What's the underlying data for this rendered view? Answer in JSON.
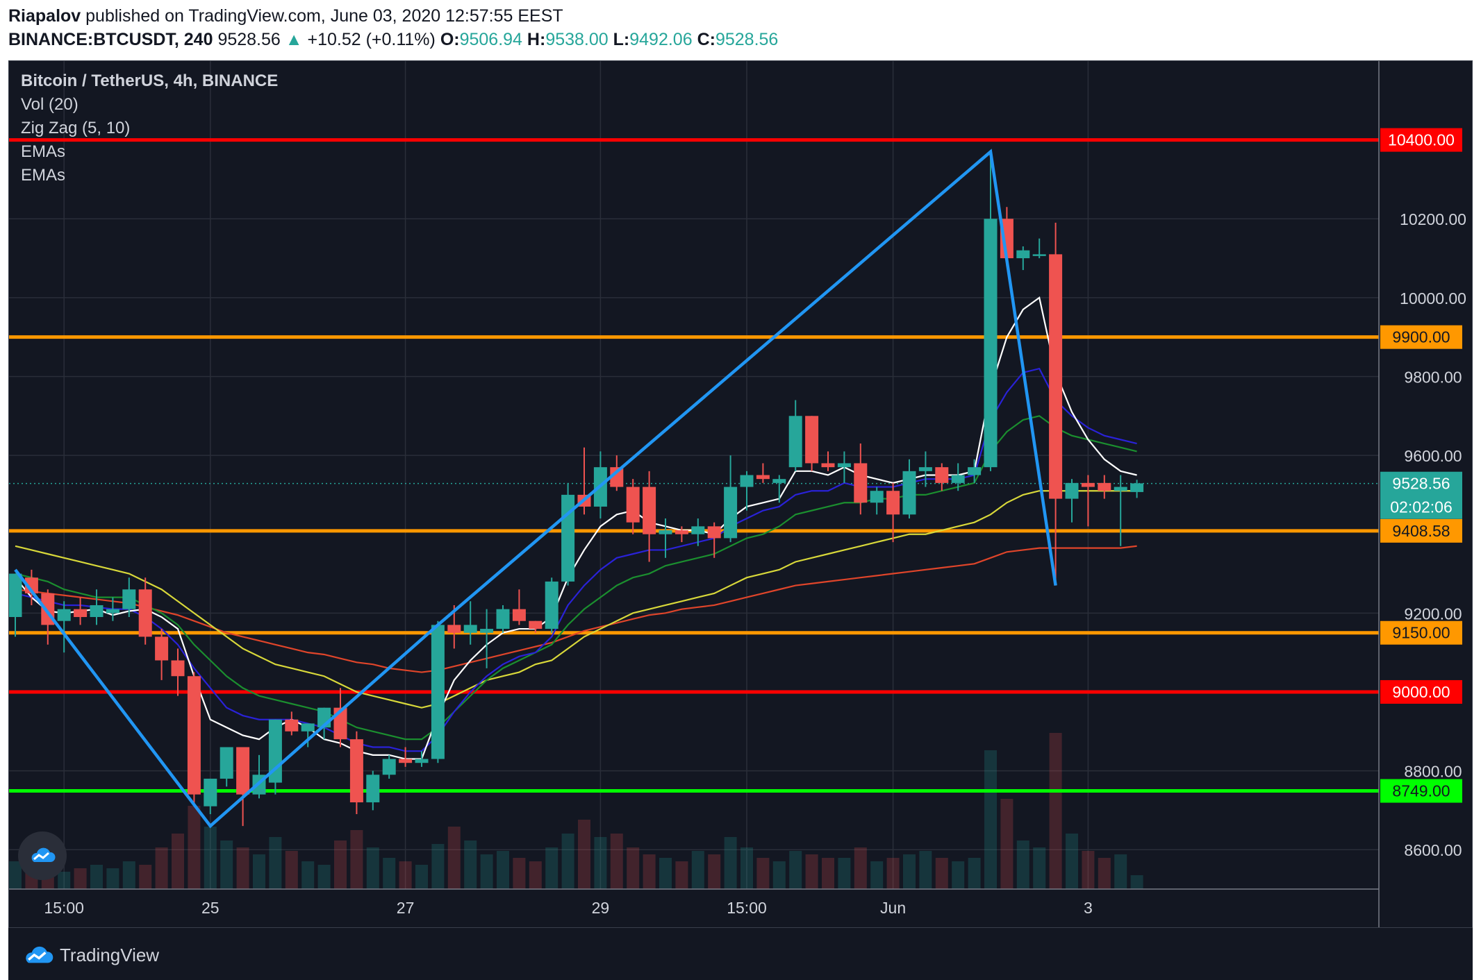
{
  "header": {
    "author": "Riapalov",
    "published": " published on TradingView.com, June 03, 2020 12:57:55 EEST",
    "symbol": "BINANCE:BTCUSDT, 240",
    "last": "9528.56",
    "arrow": "▲",
    "change": "+10.52 (+0.11%)",
    "o_label": "O:",
    "o_value": "9506.94",
    "h_label": "H:",
    "h_value": "9538.00",
    "l_label": "L:",
    "l_value": "9492.06",
    "c_label": "C:",
    "c_value": "9528.56"
  },
  "legend": {
    "title": "Bitcoin / TetherUS, 4h, BINANCE",
    "vol": "Vol (20)",
    "zigzag": "Zig Zag (5, 10)",
    "ema1": "EMAs",
    "ema2": "EMAs"
  },
  "footer": {
    "brand": "TradingView"
  },
  "colors": {
    "bg": "#131722",
    "grid": "#2a2e39",
    "up": "#26a69a",
    "down": "#ef5350",
    "red_line": "#ff0000",
    "orange_line": "#ff9800",
    "green_line": "#00ff00",
    "zigzag": "#2196f3",
    "ema_white": "#ffffff",
    "ema_blue": "#2a22d8",
    "ema_green": "#1b8f2f",
    "ema_yellow": "#d8d83a",
    "ema_red": "#e0452a"
  },
  "chart_data": {
    "type": "candlestick",
    "title": "Bitcoin / TetherUS, 4h, BINANCE",
    "ylim": [
      8520,
      10600
    ],
    "y_ticks": [
      8600,
      8800,
      9200,
      9600,
      9800,
      10000,
      10200
    ],
    "y_tick_labels": [
      "8600.00",
      "8800.00",
      "9200.00",
      "9600.00",
      "9800.00",
      "10000.00",
      "10200.00"
    ],
    "x_ticks": [
      {
        "bar": 3,
        "label": "15:00"
      },
      {
        "bar": 12,
        "label": "25"
      },
      {
        "bar": 24,
        "label": "27"
      },
      {
        "bar": 36,
        "label": "29"
      },
      {
        "bar": 45,
        "label": "15:00"
      },
      {
        "bar": 54,
        "label": "Jun"
      },
      {
        "bar": 66,
        "label": "3"
      }
    ],
    "horizontal_levels": [
      {
        "value": 10400,
        "label": "10400.00",
        "color": "red"
      },
      {
        "value": 9900,
        "label": "9900.00",
        "color": "orange"
      },
      {
        "value": 9408.58,
        "label": "9408.58",
        "color": "orange"
      },
      {
        "value": 9150,
        "label": "9150.00",
        "color": "orange"
      },
      {
        "value": 9000,
        "label": "9000.00",
        "color": "red"
      },
      {
        "value": 8749,
        "label": "8749.00",
        "color": "green"
      }
    ],
    "price_marker": {
      "value": 9528.56,
      "label": "9528.56",
      "countdown": "02:02:06"
    },
    "candles": [
      {
        "o": 9190,
        "h": 9300,
        "l": 9140,
        "c": 9300
      },
      {
        "o": 9290,
        "h": 9310,
        "l": 9220,
        "c": 9250
      },
      {
        "o": 9250,
        "h": 9260,
        "l": 9120,
        "c": 9170
      },
      {
        "o": 9180,
        "h": 9230,
        "l": 9100,
        "c": 9210
      },
      {
        "o": 9210,
        "h": 9240,
        "l": 9170,
        "c": 9190
      },
      {
        "o": 9190,
        "h": 9260,
        "l": 9170,
        "c": 9220
      },
      {
        "o": 9200,
        "h": 9240,
        "l": 9180,
        "c": 9210
      },
      {
        "o": 9210,
        "h": 9290,
        "l": 9190,
        "c": 9260
      },
      {
        "o": 9260,
        "h": 9290,
        "l": 9120,
        "c": 9140
      },
      {
        "o": 9140,
        "h": 9160,
        "l": 9030,
        "c": 9080
      },
      {
        "o": 9080,
        "h": 9110,
        "l": 8990,
        "c": 9040
      },
      {
        "o": 9040,
        "h": 9050,
        "l": 8710,
        "c": 8740
      },
      {
        "o": 8710,
        "h": 8780,
        "l": 8690,
        "c": 8780
      },
      {
        "o": 8780,
        "h": 8860,
        "l": 8760,
        "c": 8860
      },
      {
        "o": 8860,
        "h": 8860,
        "l": 8660,
        "c": 8740
      },
      {
        "o": 8740,
        "h": 8840,
        "l": 8730,
        "c": 8790
      },
      {
        "o": 8770,
        "h": 8930,
        "l": 8740,
        "c": 8930
      },
      {
        "o": 8930,
        "h": 8950,
        "l": 8890,
        "c": 8900
      },
      {
        "o": 8900,
        "h": 8920,
        "l": 8860,
        "c": 8920
      },
      {
        "o": 8910,
        "h": 8960,
        "l": 8880,
        "c": 8960
      },
      {
        "o": 8960,
        "h": 9010,
        "l": 8860,
        "c": 8880
      },
      {
        "o": 8880,
        "h": 8900,
        "l": 8690,
        "c": 8720
      },
      {
        "o": 8720,
        "h": 8800,
        "l": 8700,
        "c": 8790
      },
      {
        "o": 8790,
        "h": 8840,
        "l": 8780,
        "c": 8830
      },
      {
        "o": 8830,
        "h": 8860,
        "l": 8810,
        "c": 8820
      },
      {
        "o": 8820,
        "h": 8850,
        "l": 8810,
        "c": 8830
      },
      {
        "o": 8830,
        "h": 9180,
        "l": 8820,
        "c": 9170
      },
      {
        "o": 9170,
        "h": 9220,
        "l": 9110,
        "c": 9150
      },
      {
        "o": 9150,
        "h": 9230,
        "l": 9120,
        "c": 9170
      },
      {
        "o": 9150,
        "h": 9210,
        "l": 9060,
        "c": 9160
      },
      {
        "o": 9160,
        "h": 9220,
        "l": 9150,
        "c": 9210
      },
      {
        "o": 9210,
        "h": 9260,
        "l": 9170,
        "c": 9180
      },
      {
        "o": 9180,
        "h": 9180,
        "l": 9150,
        "c": 9160
      },
      {
        "o": 9160,
        "h": 9290,
        "l": 9150,
        "c": 9280
      },
      {
        "o": 9280,
        "h": 9530,
        "l": 9270,
        "c": 9500
      },
      {
        "o": 9500,
        "h": 9620,
        "l": 9450,
        "c": 9470
      },
      {
        "o": 9470,
        "h": 9610,
        "l": 9440,
        "c": 9570
      },
      {
        "o": 9570,
        "h": 9600,
        "l": 9510,
        "c": 9520
      },
      {
        "o": 9520,
        "h": 9540,
        "l": 9400,
        "c": 9430
      },
      {
        "o": 9520,
        "h": 9560,
        "l": 9330,
        "c": 9400
      },
      {
        "o": 9400,
        "h": 9440,
        "l": 9340,
        "c": 9410
      },
      {
        "o": 9410,
        "h": 9420,
        "l": 9380,
        "c": 9400
      },
      {
        "o": 9400,
        "h": 9440,
        "l": 9370,
        "c": 9420
      },
      {
        "o": 9420,
        "h": 9430,
        "l": 9340,
        "c": 9390
      },
      {
        "o": 9390,
        "h": 9600,
        "l": 9380,
        "c": 9520
      },
      {
        "o": 9520,
        "h": 9560,
        "l": 9460,
        "c": 9550
      },
      {
        "o": 9550,
        "h": 9580,
        "l": 9530,
        "c": 9540
      },
      {
        "o": 9530,
        "h": 9550,
        "l": 9480,
        "c": 9540
      },
      {
        "o": 9570,
        "h": 9740,
        "l": 9560,
        "c": 9700
      },
      {
        "o": 9700,
        "h": 9700,
        "l": 9560,
        "c": 9580
      },
      {
        "o": 9580,
        "h": 9610,
        "l": 9560,
        "c": 9570
      },
      {
        "o": 9570,
        "h": 9610,
        "l": 9530,
        "c": 9580
      },
      {
        "o": 9580,
        "h": 9630,
        "l": 9450,
        "c": 9480
      },
      {
        "o": 9480,
        "h": 9520,
        "l": 9450,
        "c": 9510
      },
      {
        "o": 9510,
        "h": 9530,
        "l": 9380,
        "c": 9450
      },
      {
        "o": 9450,
        "h": 9590,
        "l": 9440,
        "c": 9560
      },
      {
        "o": 9560,
        "h": 9610,
        "l": 9520,
        "c": 9570
      },
      {
        "o": 9570,
        "h": 9580,
        "l": 9510,
        "c": 9530
      },
      {
        "o": 9530,
        "h": 9580,
        "l": 9510,
        "c": 9550
      },
      {
        "o": 9550,
        "h": 9590,
        "l": 9530,
        "c": 9570
      },
      {
        "o": 9570,
        "h": 10370,
        "l": 9560,
        "c": 10200
      },
      {
        "o": 10200,
        "h": 10230,
        "l": 10080,
        "c": 10100
      },
      {
        "o": 10100,
        "h": 10130,
        "l": 10070,
        "c": 10120
      },
      {
        "o": 10110,
        "h": 10150,
        "l": 10100,
        "c": 10110
      },
      {
        "o": 10110,
        "h": 10190,
        "l": 9270,
        "c": 9490
      },
      {
        "o": 9490,
        "h": 9540,
        "l": 9430,
        "c": 9530
      },
      {
        "o": 9530,
        "h": 9550,
        "l": 9420,
        "c": 9520
      },
      {
        "o": 9530,
        "h": 9550,
        "l": 9490,
        "c": 9510
      },
      {
        "o": 9510,
        "h": 9550,
        "l": 9370,
        "c": 9520
      },
      {
        "o": 9507,
        "h": 9538,
        "l": 9492,
        "c": 9529
      }
    ],
    "volumes": [
      40,
      30,
      45,
      25,
      30,
      35,
      30,
      40,
      35,
      60,
      80,
      120,
      90,
      70,
      60,
      50,
      75,
      55,
      40,
      35,
      70,
      85,
      60,
      45,
      40,
      35,
      65,
      90,
      70,
      50,
      55,
      45,
      40,
      60,
      80,
      100,
      75,
      80,
      60,
      50,
      45,
      40,
      55,
      50,
      75,
      60,
      45,
      40,
      55,
      50,
      45,
      45,
      60,
      40,
      45,
      50,
      55,
      45,
      40,
      45,
      200,
      130,
      70,
      60,
      225,
      80,
      55,
      45,
      50,
      20
    ],
    "ema_white": [
      9290,
      9240,
      9205,
      9200,
      9205,
      9210,
      9195,
      9205,
      9210,
      9190,
      9160,
      9040,
      8930,
      8910,
      8890,
      8880,
      8910,
      8930,
      8910,
      8880,
      8870,
      8850,
      8840,
      8840,
      8830,
      8830,
      8940,
      9030,
      9080,
      9120,
      9150,
      9160,
      9160,
      9190,
      9290,
      9360,
      9420,
      9450,
      9460,
      9430,
      9420,
      9410,
      9410,
      9400,
      9440,
      9470,
      9480,
      9490,
      9560,
      9560,
      9550,
      9570,
      9550,
      9540,
      9530,
      9540,
      9550,
      9550,
      9550,
      9560,
      9770,
      9900,
      9970,
      10000,
      9810,
      9710,
      9640,
      9590,
      9560,
      9550
    ],
    "ema_blue": [
      9250,
      9240,
      9230,
      9220,
      9220,
      9215,
      9210,
      9210,
      9190,
      9160,
      9120,
      9060,
      9010,
      8960,
      8940,
      8930,
      8930,
      8930,
      8920,
      8910,
      8890,
      8870,
      8860,
      8860,
      8850,
      8850,
      8890,
      8950,
      9000,
      9040,
      9070,
      9090,
      9100,
      9140,
      9220,
      9270,
      9310,
      9340,
      9350,
      9360,
      9360,
      9370,
      9380,
      9390,
      9420,
      9440,
      9460,
      9470,
      9500,
      9510,
      9510,
      9530,
      9520,
      9520,
      9520,
      9530,
      9540,
      9540,
      9540,
      9550,
      9690,
      9760,
      9810,
      9820,
      9740,
      9700,
      9670,
      9650,
      9640,
      9630
    ],
    "ema_green": [
      9300,
      9290,
      9280,
      9260,
      9250,
      9240,
      9240,
      9240,
      9220,
      9200,
      9170,
      9120,
      9080,
      9040,
      9010,
      8990,
      8980,
      8970,
      8960,
      8950,
      8930,
      8910,
      8900,
      8890,
      8880,
      8880,
      8910,
      8950,
      8990,
      9030,
      9060,
      9080,
      9100,
      9120,
      9170,
      9210,
      9240,
      9270,
      9290,
      9300,
      9320,
      9330,
      9340,
      9350,
      9370,
      9390,
      9400,
      9420,
      9450,
      9460,
      9470,
      9480,
      9480,
      9490,
      9490,
      9500,
      9500,
      9510,
      9520,
      9530,
      9610,
      9660,
      9690,
      9700,
      9670,
      9650,
      9640,
      9630,
      9620,
      9610
    ],
    "ema_yellow": [
      9370,
      9360,
      9350,
      9340,
      9330,
      9320,
      9310,
      9300,
      9280,
      9260,
      9230,
      9200,
      9170,
      9140,
      9110,
      9090,
      9070,
      9060,
      9050,
      9040,
      9020,
      9000,
      8990,
      8980,
      8970,
      8960,
      8970,
      8990,
      9010,
      9030,
      9040,
      9050,
      9070,
      9080,
      9110,
      9140,
      9160,
      9180,
      9200,
      9210,
      9220,
      9230,
      9240,
      9250,
      9270,
      9290,
      9300,
      9310,
      9330,
      9340,
      9350,
      9360,
      9370,
      9380,
      9390,
      9400,
      9400,
      9410,
      9420,
      9430,
      9450,
      9480,
      9500,
      9510,
      9510,
      9510,
      9510,
      9510,
      9510,
      9510
    ],
    "ema_red": [
      9260,
      9255,
      9250,
      9245,
      9240,
      9235,
      9230,
      9225,
      9215,
      9205,
      9195,
      9180,
      9165,
      9150,
      9140,
      9130,
      9120,
      9110,
      9100,
      9095,
      9085,
      9075,
      9070,
      9060,
      9055,
      9050,
      9055,
      9065,
      9075,
      9085,
      9095,
      9105,
      9115,
      9125,
      9140,
      9155,
      9165,
      9175,
      9185,
      9195,
      9200,
      9210,
      9215,
      9220,
      9230,
      9240,
      9250,
      9260,
      9270,
      9275,
      9280,
      9285,
      9290,
      9295,
      9300,
      9305,
      9310,
      9315,
      9320,
      9325,
      9340,
      9355,
      9360,
      9365,
      9365,
      9365,
      9365,
      9365,
      9365,
      9370
    ],
    "zigzag": [
      {
        "bar": 0,
        "value": 9310
      },
      {
        "bar": 12,
        "value": 8660
      },
      {
        "bar": 26,
        "value": 9170
      },
      {
        "bar": 60,
        "value": 10370
      },
      {
        "bar": 64,
        "value": 9270
      }
    ]
  }
}
